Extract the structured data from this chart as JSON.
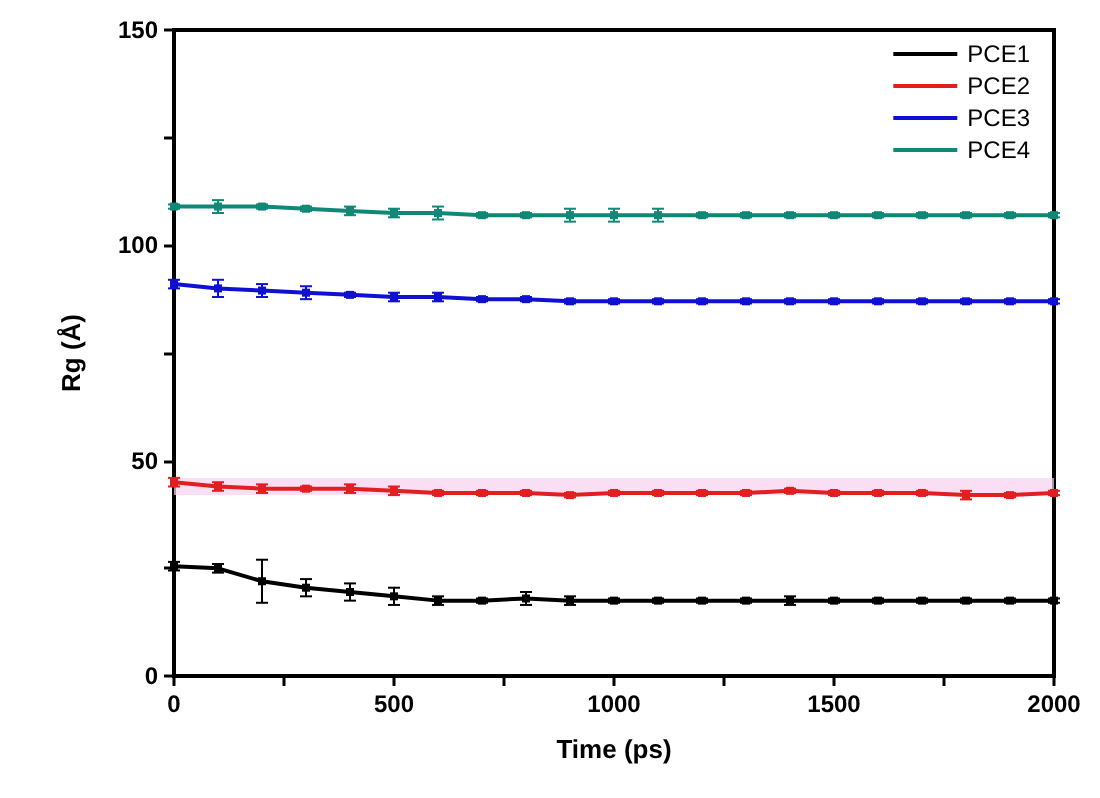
{
  "chart_data": {
    "type": "line",
    "xlabel": "Time (ps)",
    "ylabel": "Rg (Å)",
    "x": [
      0,
      100,
      200,
      300,
      400,
      500,
      600,
      700,
      800,
      900,
      1000,
      1100,
      1200,
      1300,
      1400,
      1500,
      1600,
      1700,
      1800,
      1900,
      2000
    ],
    "series": [
      {
        "name": "PCE1",
        "color": "#000000",
        "values": [
          25.5,
          25,
          22,
          20.5,
          19.5,
          18.5,
          17.5,
          17.5,
          18,
          17.5,
          17.5,
          17.5,
          17.5,
          17.5,
          17.5,
          17.5,
          17.5,
          17.5,
          17.5,
          17.5,
          17.5
        ],
        "errors": [
          1,
          1,
          5,
          2,
          2,
          2,
          1,
          0.5,
          1.5,
          1,
          0.5,
          0.5,
          0.5,
          0.5,
          1,
          0.5,
          0.5,
          0.5,
          0.5,
          0.5,
          0.5
        ]
      },
      {
        "name": "PCE2",
        "color": "#e02020",
        "values": [
          45,
          44,
          43.5,
          43.5,
          43.5,
          43,
          42.5,
          42.5,
          42.5,
          42,
          42.5,
          42.5,
          42.5,
          42.5,
          43,
          42.5,
          42.5,
          42.5,
          42,
          42,
          42.5
        ],
        "errors": [
          1,
          1,
          1,
          0.5,
          1,
          1,
          0.5,
          0.5,
          0.5,
          0.5,
          0.5,
          0.5,
          0.5,
          0.5,
          0.5,
          0.5,
          0.5,
          0.5,
          1,
          0.5,
          0.5
        ]
      },
      {
        "name": "PCE3",
        "color": "#1010d0",
        "values": [
          91,
          90,
          89.5,
          89,
          88.5,
          88,
          88,
          87.5,
          87.5,
          87,
          87,
          87,
          87,
          87,
          87,
          87,
          87,
          87,
          87,
          87,
          87
        ],
        "errors": [
          1,
          2,
          1.5,
          1.5,
          0.5,
          1,
          1,
          0.5,
          0.5,
          0.5,
          0.5,
          0.5,
          0.5,
          0.5,
          0.5,
          0.5,
          0.5,
          0.5,
          0.5,
          0.5,
          0.5
        ]
      },
      {
        "name": "PCE4",
        "color": "#108878",
        "values": [
          109,
          109,
          109,
          108.5,
          108,
          107.5,
          107.5,
          107,
          107,
          107,
          107,
          107,
          107,
          107,
          107,
          107,
          107,
          107,
          107,
          107,
          107
        ],
        "errors": [
          0.5,
          1.5,
          0.5,
          0.5,
          1,
          1,
          1.5,
          0.5,
          0.5,
          1.5,
          1.5,
          1.5,
          0.5,
          0.5,
          0.5,
          0.5,
          0.5,
          0.5,
          0.5,
          0.5,
          0.5
        ]
      }
    ],
    "bands": [
      {
        "axis": "y",
        "from": 42,
        "to": 46,
        "color": "#f8d0f0"
      }
    ],
    "xlim": [
      0,
      2000
    ],
    "xticks": [
      0,
      {
        "value": 250,
        "label": null
      },
      500,
      {
        "value": 750,
        "label": null
      },
      1000,
      {
        "value": 1250,
        "label": null
      },
      1500,
      {
        "value": 1750,
        "label": null
      },
      2000
    ],
    "ylim": [
      0,
      150
    ],
    "yticks": [
      0,
      {
        "value": 25,
        "label": null
      },
      50,
      {
        "value": 75,
        "label": null
      },
      100,
      {
        "value": 125,
        "label": null
      },
      150
    ],
    "grid": false,
    "legend": "top right",
    "marker": "square",
    "line_style": "solid"
  }
}
